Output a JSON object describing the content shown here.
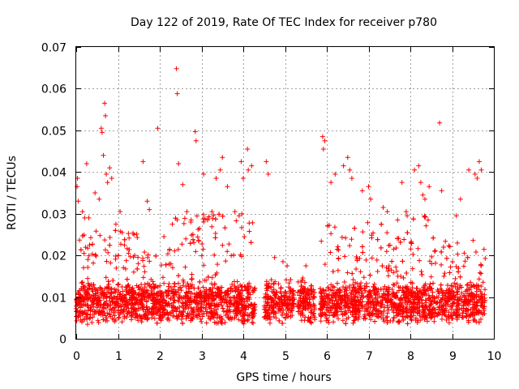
{
  "chart_data": {
    "type": "scatter",
    "title": "Day 122 of 2019, Rate Of TEC Index for receiver p780",
    "xlabel": "GPS time / hours",
    "ylabel": "ROTI / TECUs",
    "xlim": [
      0,
      10
    ],
    "ylim": [
      0,
      0.07
    ],
    "xticks": [
      0,
      1,
      2,
      3,
      4,
      5,
      6,
      7,
      8,
      9,
      10
    ],
    "yticks": [
      0,
      0.01,
      0.02,
      0.03,
      0.04,
      0.05,
      0.06,
      0.07
    ],
    "xtick_labels": [
      "0",
      "1",
      "2",
      "3",
      "4",
      "5",
      "6",
      "7",
      "8",
      "9",
      "10"
    ],
    "ytick_labels": [
      "0",
      "0.01",
      "0.02",
      "0.03",
      "0.04",
      "0.05",
      "0.06",
      "0.07"
    ],
    "grid": true,
    "marker": "+",
    "marker_color": "#ff0000",
    "series": [
      {
        "name": "ROTI",
        "data_note": "dense cloud: most values 0.005-0.015 TECU, upper envelope varying with time; gaps around 4.3-4.5, 5.2-5.3 and 5.7-5.8 hours",
        "x": [
          0.02,
          0.03,
          0.05,
          0.15,
          0.2,
          0.25,
          0.3,
          0.45,
          0.55,
          0.6,
          0.62,
          0.65,
          0.68,
          0.7,
          0.72,
          0.75,
          0.8,
          0.85,
          0.95,
          1.05,
          1.1,
          1.25,
          1.4,
          1.6,
          1.7,
          1.75,
          1.95,
          2.1,
          2.3,
          2.4,
          2.42,
          2.45,
          2.55,
          2.65,
          2.75,
          2.85,
          2.87,
          3.05,
          3.25,
          3.35,
          3.45,
          3.5,
          3.62,
          3.8,
          3.9,
          3.95,
          4.0,
          4.1,
          4.12,
          4.2,
          4.55,
          4.6,
          4.75,
          4.95,
          5.05,
          5.5,
          5.9,
          5.92,
          5.95,
          6.1,
          6.2,
          6.4,
          6.5,
          6.55,
          6.6,
          6.85,
          7.0,
          7.05,
          7.35,
          7.45,
          7.8,
          7.9,
          8.1,
          8.2,
          8.25,
          8.3,
          8.35,
          8.45,
          8.7,
          8.75,
          9.1,
          9.2,
          9.4,
          9.55,
          9.6,
          9.65,
          9.7
        ],
        "y": [
          0.0365,
          0.0385,
          0.033,
          0.0305,
          0.029,
          0.042,
          0.029,
          0.035,
          0.0335,
          0.0505,
          0.0495,
          0.044,
          0.0565,
          0.0535,
          0.0395,
          0.0375,
          0.041,
          0.0385,
          0.0275,
          0.0305,
          0.0255,
          0.0205,
          0.02,
          0.0425,
          0.033,
          0.031,
          0.0505,
          0.0245,
          0.0275,
          0.0648,
          0.0588,
          0.042,
          0.037,
          0.0305,
          0.0285,
          0.0497,
          0.0475,
          0.0395,
          0.0305,
          0.0385,
          0.0405,
          0.0435,
          0.0365,
          0.0305,
          0.0295,
          0.0425,
          0.0385,
          0.0455,
          0.0405,
          0.0415,
          0.0425,
          0.0395,
          0.0195,
          0.0185,
          0.0175,
          0.0175,
          0.0485,
          0.0455,
          0.0475,
          0.0375,
          0.0395,
          0.0415,
          0.0435,
          0.0405,
          0.0385,
          0.0355,
          0.0365,
          0.0335,
          0.0315,
          0.0305,
          0.0375,
          0.0305,
          0.0405,
          0.0415,
          0.0375,
          0.0345,
          0.0335,
          0.0365,
          0.0518,
          0.0355,
          0.0295,
          0.0335,
          0.0405,
          0.0395,
          0.0385,
          0.0425,
          0.0405
        ]
      }
    ]
  }
}
